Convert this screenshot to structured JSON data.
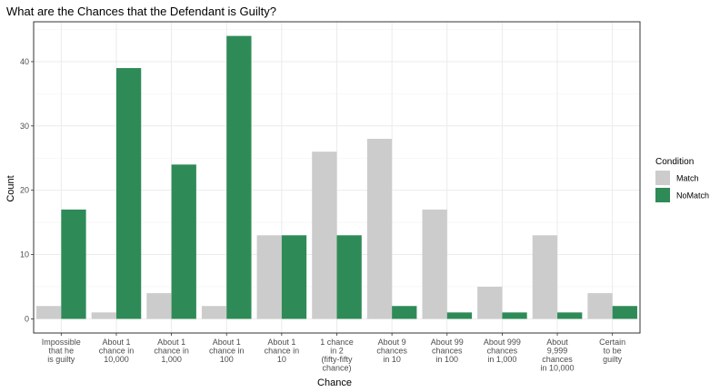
{
  "chart_data": {
    "type": "bar",
    "title": "What are the Chances that the Defendant is Guilty?",
    "xlabel": "Chance",
    "ylabel": "Count",
    "ylim": [
      -2.2,
      46.2
    ],
    "yticks": [
      0,
      10,
      20,
      30,
      40
    ],
    "grid": true,
    "legend_position": "right",
    "legend_title": "Condition",
    "categories": [
      [
        "Impossible",
        "that he",
        "is guilty"
      ],
      [
        "About 1",
        "chance in",
        "10,000"
      ],
      [
        "About 1",
        "chance in",
        "1,000"
      ],
      [
        "About 1",
        "chance in",
        "100"
      ],
      [
        "About 1",
        "chance in",
        "10"
      ],
      [
        "1 chance",
        "in 2",
        "(fifty-fifty",
        "chance)"
      ],
      [
        "About 9",
        "chances",
        "in 10"
      ],
      [
        "About 99",
        "chances",
        "in 100"
      ],
      [
        "About 999",
        "chances",
        "in 1,000"
      ],
      [
        "About",
        "9,999",
        "chances",
        "in 10,000"
      ],
      [
        "Certain",
        "to be",
        "guilty"
      ]
    ],
    "series": [
      {
        "name": "Match",
        "color": "#cccccc",
        "values": [
          2,
          1,
          4,
          2,
          13,
          26,
          28,
          17,
          5,
          13,
          4
        ]
      },
      {
        "name": "NoMatch",
        "color": "#2e8b57",
        "values": [
          17,
          39,
          24,
          44,
          13,
          13,
          2,
          1,
          1,
          1,
          2
        ]
      }
    ]
  }
}
